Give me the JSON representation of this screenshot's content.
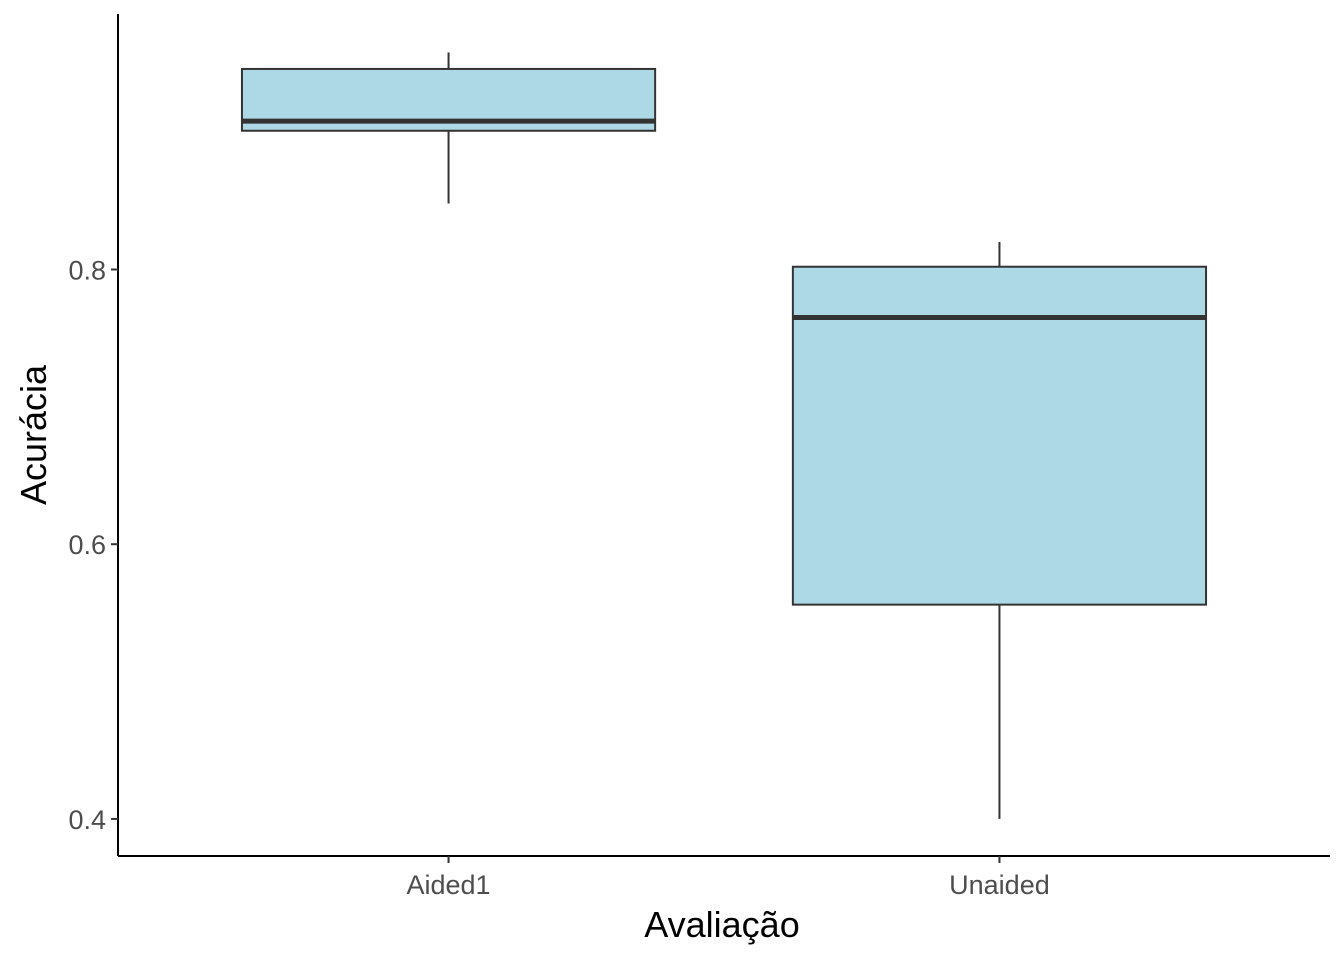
{
  "chart_data": {
    "type": "box",
    "xlabel": "Avaliação",
    "ylabel": "Acurácia",
    "ylim": [
      0.373,
      0.986
    ],
    "yticks": [
      0.4,
      0.6,
      0.8
    ],
    "ytick_labels": [
      "0.4",
      "0.6",
      "0.8"
    ],
    "categories": [
      "Aided1",
      "Unaided"
    ],
    "boxes": [
      {
        "category": "Aided1",
        "min": 0.848,
        "q1": 0.901,
        "median": 0.908,
        "q3": 0.946,
        "max": 0.958
      },
      {
        "category": "Unaided",
        "min": 0.4,
        "q1": 0.556,
        "median": 0.765,
        "q3": 0.802,
        "max": 0.82
      }
    ],
    "fill_color": "#ADD8E6",
    "line_color": "#333333",
    "grid": false,
    "legend": "none"
  }
}
